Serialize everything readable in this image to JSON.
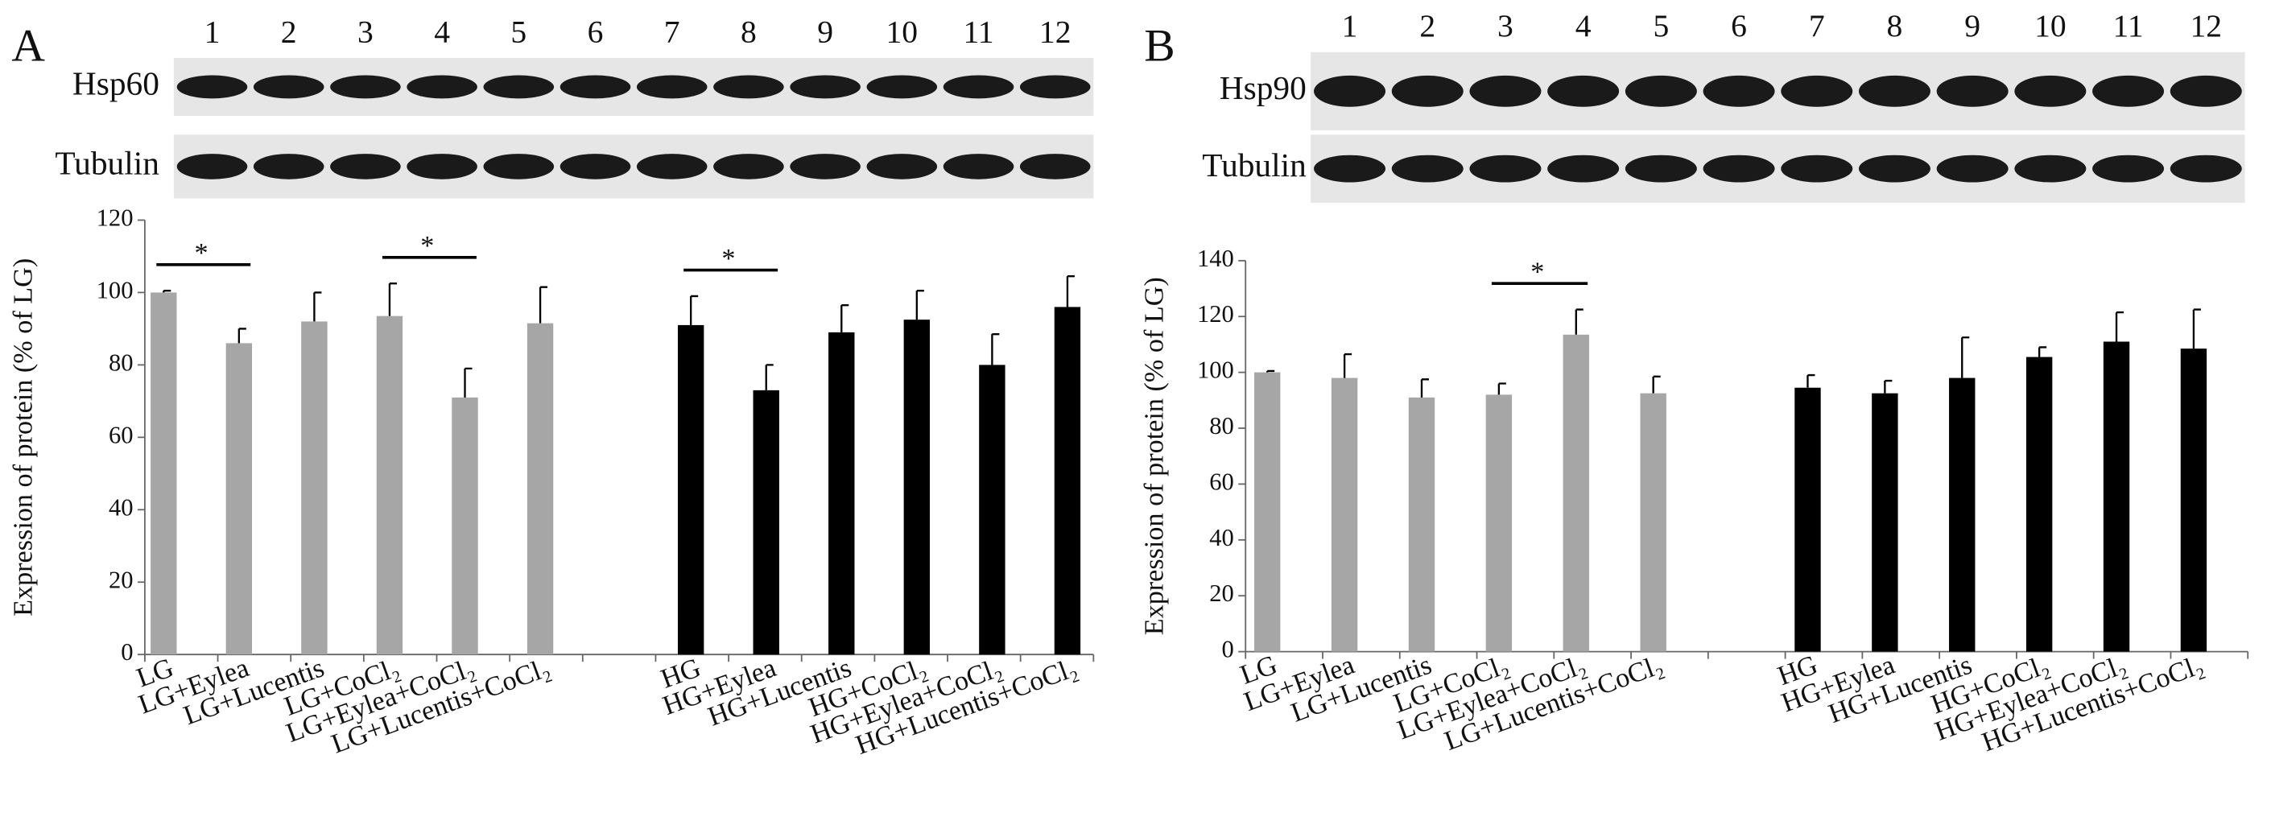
{
  "chart_data": [
    {
      "type": "bar",
      "panel": "A",
      "lanes": [
        "1",
        "2",
        "3",
        "4",
        "5",
        "6",
        "7",
        "8",
        "9",
        "10",
        "11",
        "12"
      ],
      "blot_rows": [
        "Hsp60",
        "Tubulin"
      ],
      "ylabel": "Expression of protein (% of LG)",
      "categories": [
        "LG",
        "LG+Eylea",
        "LG+Lucentis",
        "LG+CoCl₂",
        "LG+Eylea+CoCl₂",
        "LG+Lucentis+CoCl₂",
        "HG",
        "HG+Eylea",
        "HG+Lucentis",
        "HG+CoCl₂",
        "HG+Eylea+CoCl₂",
        "HG+Lucentis+CoCl₂"
      ],
      "values": [
        100,
        86,
        92,
        93.5,
        71,
        91.5,
        91,
        73,
        89,
        92.5,
        80,
        96
      ],
      "errors": [
        0.5,
        4,
        8,
        9,
        8,
        10,
        8,
        7,
        7.5,
        8,
        8.5,
        8.5
      ],
      "colors": [
        "#a6a6a6",
        "#a6a6a6",
        "#a6a6a6",
        "#a6a6a6",
        "#a6a6a6",
        "#a6a6a6",
        "#000000",
        "#000000",
        "#000000",
        "#000000",
        "#000000",
        "#000000"
      ],
      "ylim": [
        0,
        120
      ],
      "yticks": [
        0,
        20,
        40,
        60,
        80,
        100,
        120
      ],
      "significance": [
        {
          "text": "*",
          "pair": [
            0,
            1
          ]
        },
        {
          "text": "*",
          "pair": [
            3,
            4
          ]
        },
        {
          "text": "*",
          "pair": [
            6,
            7
          ]
        }
      ]
    },
    {
      "type": "bar",
      "panel": "B",
      "lanes": [
        "1",
        "2",
        "3",
        "4",
        "5",
        "6",
        "7",
        "8",
        "9",
        "10",
        "11",
        "12"
      ],
      "blot_rows": [
        "Hsp90",
        "Tubulin"
      ],
      "ylabel": "Expression of protein (% of LG)",
      "categories": [
        "LG",
        "LG+Eylea",
        "LG+Lucentis",
        "LG+CoCl₂",
        "LG+Eylea+CoCl₂",
        "LG+Lucentis+CoCl₂",
        "HG",
        "HG+Eylea",
        "HG+Lucentis",
        "HG+CoCl₂",
        "HG+Eylea+CoCl₂",
        "HG+Lucentis+CoCl₂"
      ],
      "values": [
        100,
        98,
        91,
        92,
        113.5,
        92.5,
        94.5,
        92.5,
        98,
        105.5,
        111,
        108.5
      ],
      "errors": [
        0.5,
        8.5,
        6.5,
        4,
        9,
        6,
        4.5,
        4.5,
        14.5,
        3.5,
        10.5,
        14
      ],
      "colors": [
        "#a6a6a6",
        "#a6a6a6",
        "#a6a6a6",
        "#a6a6a6",
        "#a6a6a6",
        "#a6a6a6",
        "#000000",
        "#000000",
        "#000000",
        "#000000",
        "#000000",
        "#000000"
      ],
      "ylim": [
        0,
        140
      ],
      "yticks": [
        0,
        20,
        40,
        60,
        80,
        100,
        120,
        140
      ],
      "significance": [
        {
          "text": "*",
          "pair": [
            3,
            4
          ]
        }
      ]
    }
  ]
}
